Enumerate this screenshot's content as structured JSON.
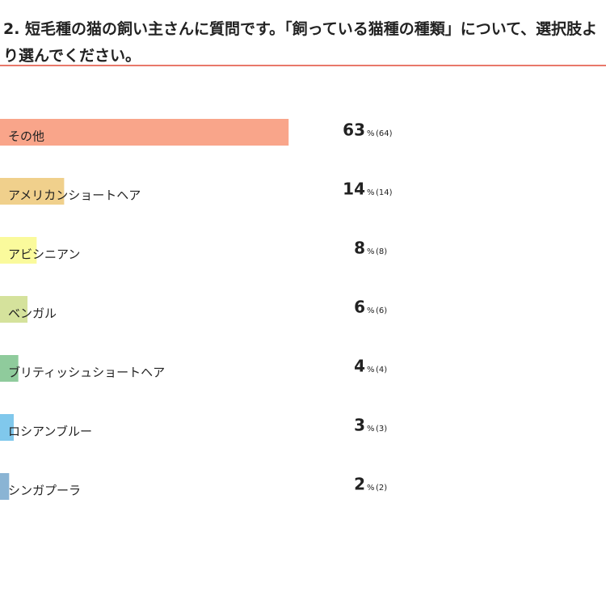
{
  "chart_data": {
    "type": "bar",
    "orientation": "horizontal",
    "title": "2. 短毛種の猫の飼い主さんに質問です。「飼っている猫種の種類」について、選択肢より選んでください。",
    "categories": [
      "その他",
      "アメリカンショートヘア",
      "アビシニアン",
      "ベンガル",
      "ブリティッシュショートヘア",
      "ロシアンブルー",
      "シンガプーラ"
    ],
    "values": [
      63,
      14,
      8,
      6,
      4,
      3,
      2
    ],
    "unit": "%",
    "counts": [
      {
        "value": 64,
        "label": "(64)"
      },
      {
        "value": 14,
        "label": "(14)"
      },
      {
        "value": 8,
        "label": "(8)"
      },
      {
        "value": 6,
        "label": "(6)"
      },
      {
        "value": 4,
        "label": "(4)"
      },
      {
        "value": 3,
        "label": "(3)"
      },
      {
        "value": 2,
        "label": "(2)"
      }
    ],
    "colors": [
      "#f9a58a",
      "#f0d08c",
      "#fafa9c",
      "#d5e29c",
      "#8fcb9c",
      "#80c8ec",
      "#8ab4d4"
    ],
    "xlim": [
      0,
      100
    ]
  }
}
